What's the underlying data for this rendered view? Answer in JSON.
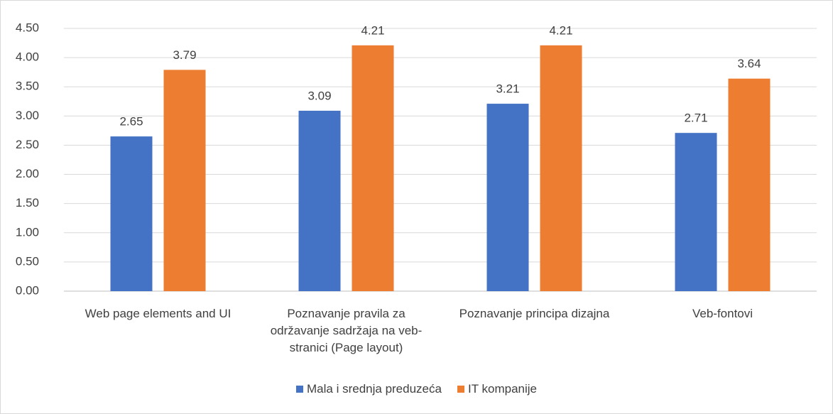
{
  "chart_data": {
    "type": "bar",
    "categories": [
      "Web page elements and UI",
      "Poznavanje pravila za održavanje sadržaja na veb-stranici (Page layout)",
      "Poznavanje principa dizajna",
      "Veb-fontovi"
    ],
    "series": [
      {
        "name": "Mala i srednja preduzeća",
        "color": "#4472c4",
        "values": [
          2.65,
          3.09,
          3.21,
          2.71
        ]
      },
      {
        "name": "IT kompanije",
        "color": "#ed7d31",
        "values": [
          3.79,
          4.21,
          4.21,
          3.64
        ]
      }
    ],
    "ylim": [
      0,
      4.5
    ],
    "yticks": [
      {
        "value": 0,
        "label": "0.00"
      },
      {
        "value": 0.5,
        "label": "0.50"
      },
      {
        "value": 1,
        "label": "1.00"
      },
      {
        "value": 1.5,
        "label": "1.50"
      },
      {
        "value": 2,
        "label": "2.00"
      },
      {
        "value": 2.5,
        "label": "2.50"
      },
      {
        "value": 3,
        "label": "3.00"
      },
      {
        "value": 3.5,
        "label": "3.50"
      },
      {
        "value": 4,
        "label": "4.00"
      },
      {
        "value": 4.5,
        "label": "4.50"
      }
    ],
    "grid": true,
    "legend": "bottom"
  }
}
